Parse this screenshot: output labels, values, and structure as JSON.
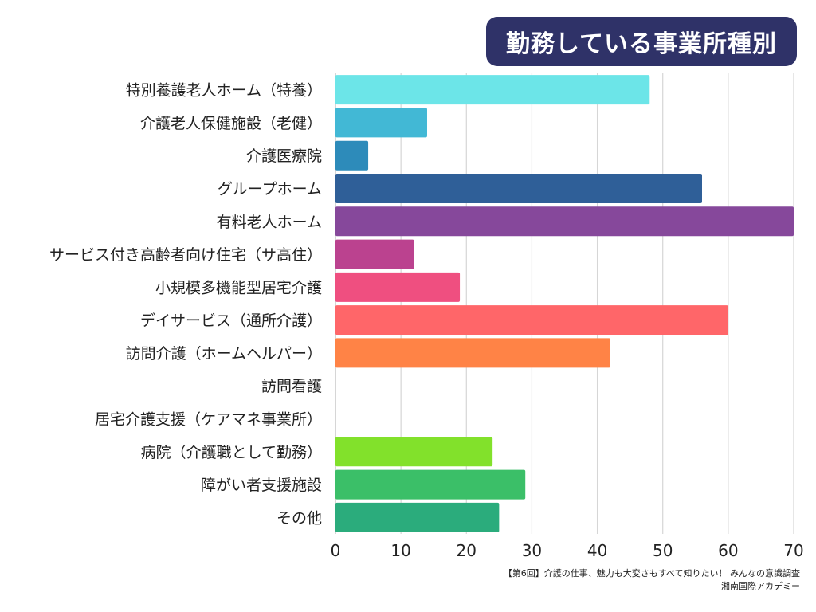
{
  "chart_data": {
    "type": "bar",
    "orientation": "horizontal",
    "title": "勤務している事業所種別",
    "categories": [
      "特別養護老人ホーム（特養）",
      "介護老人保健施設（老健）",
      "介護医療院",
      "グループホーム",
      "有料老人ホーム",
      "サービス付き高齢者向け住宅（サ高住）",
      "小規模多機能型居宅介護",
      "デイサービス（通所介護）",
      "訪問介護（ホームヘルパー）",
      "訪問看護",
      "居宅介護支援（ケアマネ事業所）",
      "病院（介護職として勤務）",
      "障がい者支援施設",
      "その他"
    ],
    "values": [
      48,
      14,
      5,
      56,
      70,
      12,
      19,
      60,
      42,
      0,
      0,
      24,
      29,
      25
    ],
    "colors": [
      "#6ce5e8",
      "#42b8d5",
      "#2d8bba",
      "#2f5f98",
      "#86489b",
      "#bb428f",
      "#ef4f80",
      "#ff6669",
      "#ff8346",
      "#f5b041",
      "#f4d03f",
      "#82e12b",
      "#3bbf68",
      "#2bac7c"
    ],
    "xlim": [
      0,
      70
    ],
    "xticks": [
      "0",
      "10",
      "20",
      "30",
      "40",
      "50",
      "60",
      "70"
    ],
    "xlabel": "",
    "ylabel": "",
    "grid": true
  },
  "footer": {
    "line1": "【第6回】介護の仕事、魅力も大変さもすべて知りたい！ みんなの意識調査",
    "line2": "湘南国際アカデミー"
  }
}
